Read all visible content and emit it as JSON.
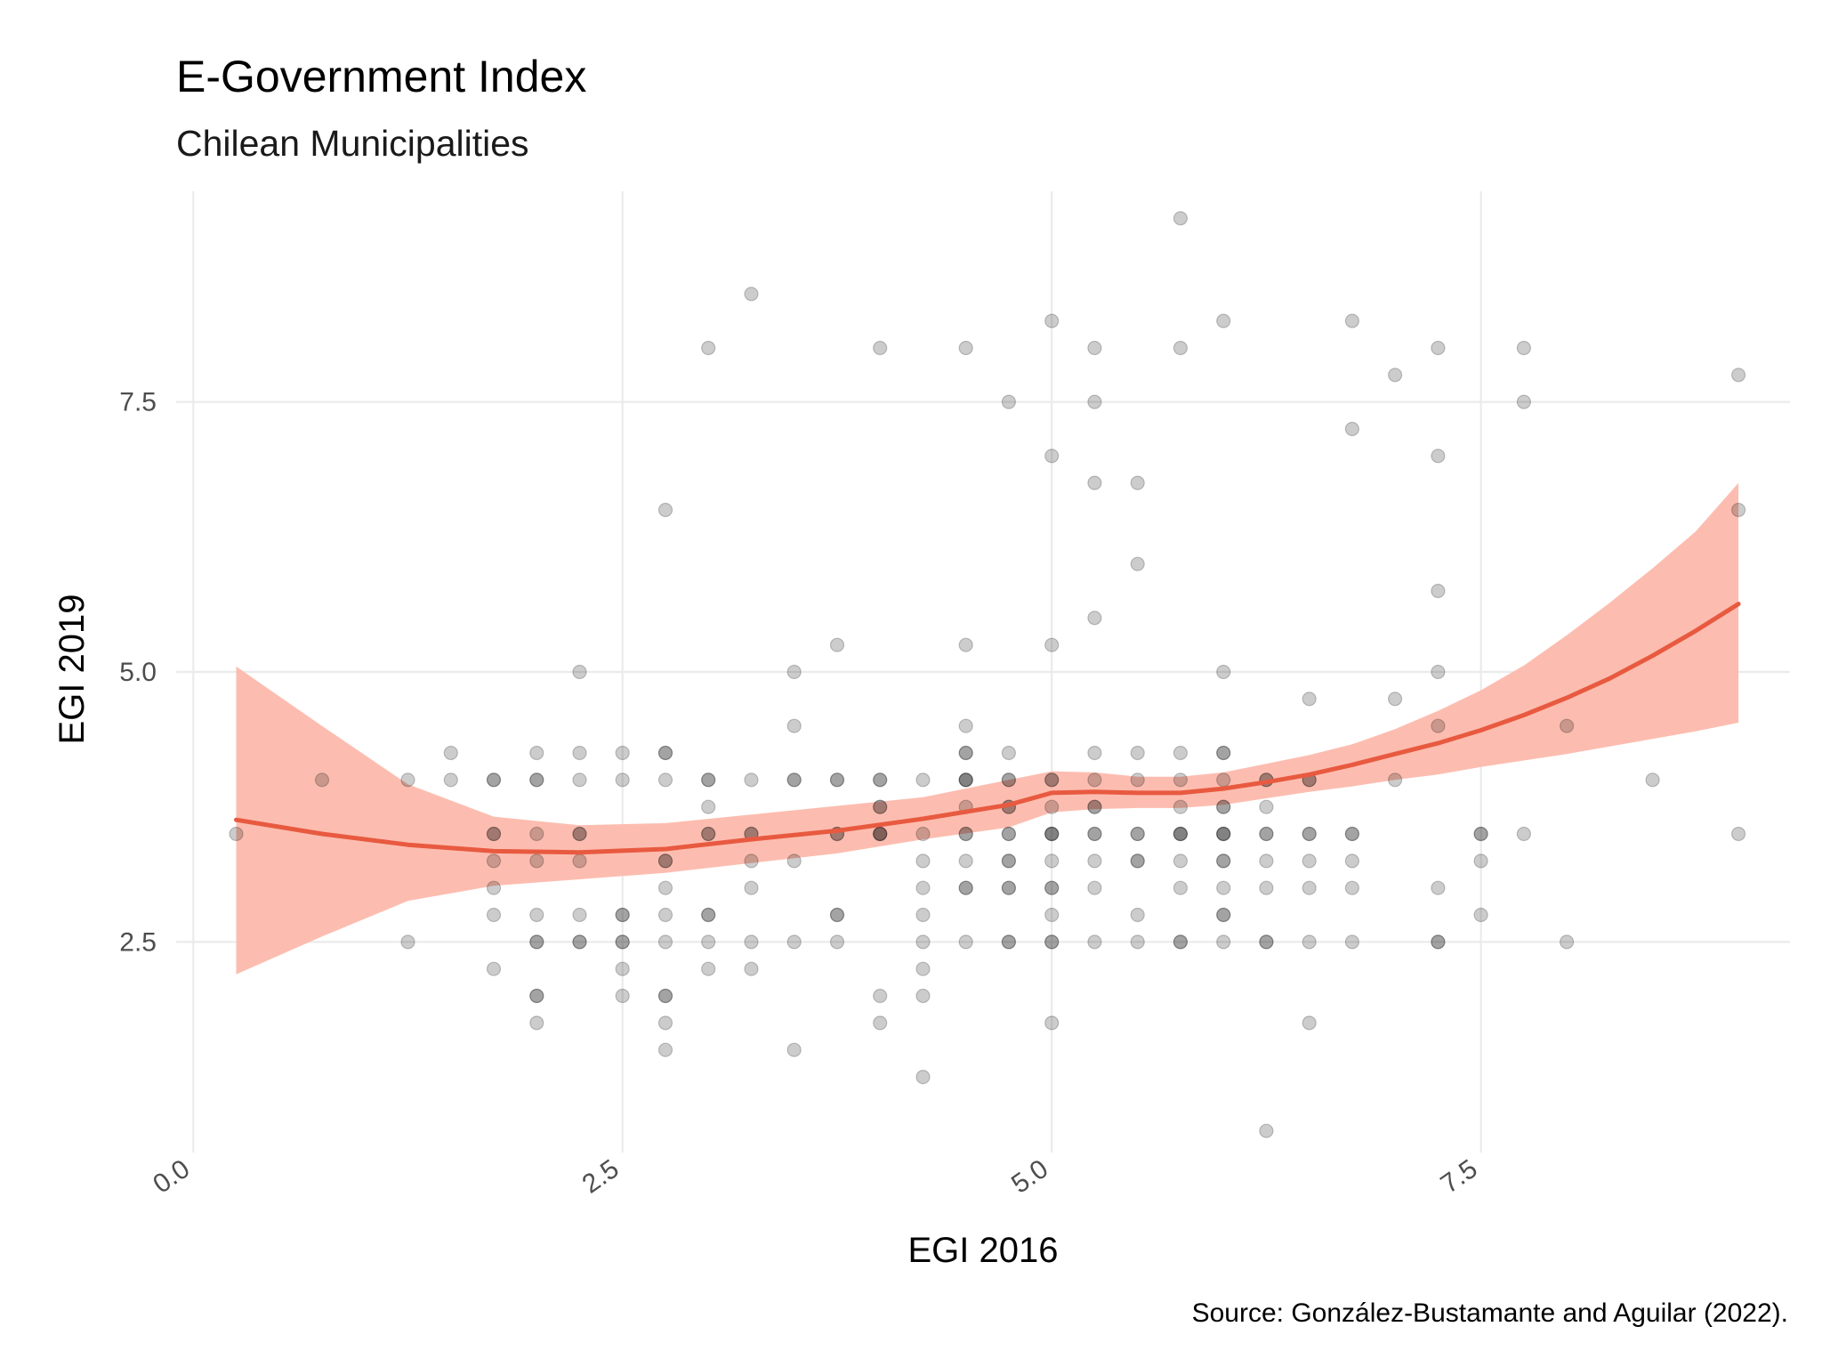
{
  "chart_data": {
    "type": "scatter",
    "title": "E-Government Index",
    "subtitle": "Chilean Municipalities",
    "xlabel": "EGI 2016",
    "ylabel": "EGI 2019",
    "caption": "Source: González-Bustamante and Aguilar (2022).",
    "xlim": [
      -0.1,
      9.3
    ],
    "ylim": [
      0.55,
      9.45
    ],
    "x_ticks": [
      0.0,
      2.5,
      5.0,
      7.5
    ],
    "x_tick_labels": [
      "0.0",
      "2.5",
      "5.0",
      "7.5"
    ],
    "y_ticks": [
      2.5,
      5.0,
      7.5
    ],
    "y_tick_labels": [
      "2.5",
      "5.0",
      "7.5"
    ],
    "grid": true,
    "legend": "none",
    "colors": {
      "points": "#000000",
      "smooth_line": "#e85a40",
      "confidence_band": "#fcb9ac"
    },
    "points": [
      {
        "x": 0.25,
        "y": 3.5
      },
      {
        "x": 0.75,
        "y": 4.0
      },
      {
        "x": 1.25,
        "y": 4.0
      },
      {
        "x": 1.25,
        "y": 2.5
      },
      {
        "x": 1.5,
        "y": 4.25
      },
      {
        "x": 1.5,
        "y": 4.0
      },
      {
        "x": 1.75,
        "y": 4.0
      },
      {
        "x": 1.75,
        "y": 4.0
      },
      {
        "x": 1.75,
        "y": 3.5
      },
      {
        "x": 1.75,
        "y": 3.5
      },
      {
        "x": 1.75,
        "y": 3.25
      },
      {
        "x": 1.75,
        "y": 3.0
      },
      {
        "x": 1.75,
        "y": 2.75
      },
      {
        "x": 1.75,
        "y": 2.25
      },
      {
        "x": 2.0,
        "y": 4.25
      },
      {
        "x": 2.0,
        "y": 4.0
      },
      {
        "x": 2.0,
        "y": 4.0
      },
      {
        "x": 2.0,
        "y": 3.5
      },
      {
        "x": 2.0,
        "y": 3.25
      },
      {
        "x": 2.0,
        "y": 2.75
      },
      {
        "x": 2.0,
        "y": 2.5
      },
      {
        "x": 2.0,
        "y": 2.5
      },
      {
        "x": 2.0,
        "y": 2.0
      },
      {
        "x": 2.0,
        "y": 2.0
      },
      {
        "x": 2.0,
        "y": 1.75
      },
      {
        "x": 2.25,
        "y": 5.0
      },
      {
        "x": 2.25,
        "y": 4.25
      },
      {
        "x": 2.25,
        "y": 4.0
      },
      {
        "x": 2.25,
        "y": 3.5
      },
      {
        "x": 2.25,
        "y": 3.5
      },
      {
        "x": 2.25,
        "y": 3.25
      },
      {
        "x": 2.25,
        "y": 2.75
      },
      {
        "x": 2.25,
        "y": 2.5
      },
      {
        "x": 2.25,
        "y": 2.5
      },
      {
        "x": 2.5,
        "y": 4.25
      },
      {
        "x": 2.5,
        "y": 4.0
      },
      {
        "x": 2.5,
        "y": 2.75
      },
      {
        "x": 2.5,
        "y": 2.75
      },
      {
        "x": 2.5,
        "y": 2.5
      },
      {
        "x": 2.5,
        "y": 2.5
      },
      {
        "x": 2.5,
        "y": 2.25
      },
      {
        "x": 2.5,
        "y": 2.0
      },
      {
        "x": 2.75,
        "y": 6.5
      },
      {
        "x": 2.75,
        "y": 4.25
      },
      {
        "x": 2.75,
        "y": 4.25
      },
      {
        "x": 2.75,
        "y": 4.0
      },
      {
        "x": 2.75,
        "y": 3.25
      },
      {
        "x": 2.75,
        "y": 3.25
      },
      {
        "x": 2.75,
        "y": 3.0
      },
      {
        "x": 2.75,
        "y": 2.75
      },
      {
        "x": 2.75,
        "y": 2.5
      },
      {
        "x": 2.75,
        "y": 2.0
      },
      {
        "x": 2.75,
        "y": 2.0
      },
      {
        "x": 2.75,
        "y": 1.75
      },
      {
        "x": 2.75,
        "y": 1.5
      },
      {
        "x": 3.0,
        "y": 8.0
      },
      {
        "x": 3.0,
        "y": 4.0
      },
      {
        "x": 3.0,
        "y": 4.0
      },
      {
        "x": 3.0,
        "y": 3.75
      },
      {
        "x": 3.0,
        "y": 3.5
      },
      {
        "x": 3.0,
        "y": 3.5
      },
      {
        "x": 3.0,
        "y": 2.75
      },
      {
        "x": 3.0,
        "y": 2.75
      },
      {
        "x": 3.0,
        "y": 2.5
      },
      {
        "x": 3.0,
        "y": 2.25
      },
      {
        "x": 3.25,
        "y": 8.5
      },
      {
        "x": 3.25,
        "y": 4.0
      },
      {
        "x": 3.25,
        "y": 3.5
      },
      {
        "x": 3.25,
        "y": 3.5
      },
      {
        "x": 3.25,
        "y": 3.25
      },
      {
        "x": 3.25,
        "y": 3.0
      },
      {
        "x": 3.25,
        "y": 2.5
      },
      {
        "x": 3.25,
        "y": 2.25
      },
      {
        "x": 3.5,
        "y": 5.0
      },
      {
        "x": 3.5,
        "y": 4.5
      },
      {
        "x": 3.5,
        "y": 4.0
      },
      {
        "x": 3.5,
        "y": 4.0
      },
      {
        "x": 3.5,
        "y": 3.25
      },
      {
        "x": 3.5,
        "y": 2.5
      },
      {
        "x": 3.5,
        "y": 1.5
      },
      {
        "x": 3.75,
        "y": 5.25
      },
      {
        "x": 3.75,
        "y": 4.0
      },
      {
        "x": 3.75,
        "y": 4.0
      },
      {
        "x": 3.75,
        "y": 3.5
      },
      {
        "x": 3.75,
        "y": 3.5
      },
      {
        "x": 3.75,
        "y": 2.75
      },
      {
        "x": 3.75,
        "y": 2.75
      },
      {
        "x": 3.75,
        "y": 2.5
      },
      {
        "x": 4.0,
        "y": 8.0
      },
      {
        "x": 4.0,
        "y": 4.0
      },
      {
        "x": 4.0,
        "y": 4.0
      },
      {
        "x": 4.0,
        "y": 3.75
      },
      {
        "x": 4.0,
        "y": 3.75
      },
      {
        "x": 4.0,
        "y": 3.5
      },
      {
        "x": 4.0,
        "y": 3.5
      },
      {
        "x": 4.0,
        "y": 3.5
      },
      {
        "x": 4.0,
        "y": 2.0
      },
      {
        "x": 4.0,
        "y": 1.75
      },
      {
        "x": 4.25,
        "y": 4.0
      },
      {
        "x": 4.25,
        "y": 3.5
      },
      {
        "x": 4.25,
        "y": 3.25
      },
      {
        "x": 4.25,
        "y": 3.0
      },
      {
        "x": 4.25,
        "y": 2.75
      },
      {
        "x": 4.25,
        "y": 2.5
      },
      {
        "x": 4.25,
        "y": 2.25
      },
      {
        "x": 4.25,
        "y": 2.0
      },
      {
        "x": 4.25,
        "y": 1.25
      },
      {
        "x": 4.5,
        "y": 8.0
      },
      {
        "x": 4.5,
        "y": 5.25
      },
      {
        "x": 4.5,
        "y": 4.5
      },
      {
        "x": 4.5,
        "y": 4.25
      },
      {
        "x": 4.5,
        "y": 4.25
      },
      {
        "x": 4.5,
        "y": 4.0
      },
      {
        "x": 4.5,
        "y": 4.0
      },
      {
        "x": 4.5,
        "y": 4.0
      },
      {
        "x": 4.5,
        "y": 3.75
      },
      {
        "x": 4.5,
        "y": 3.5
      },
      {
        "x": 4.5,
        "y": 3.5
      },
      {
        "x": 4.5,
        "y": 3.25
      },
      {
        "x": 4.5,
        "y": 3.0
      },
      {
        "x": 4.5,
        "y": 3.0
      },
      {
        "x": 4.5,
        "y": 2.5
      },
      {
        "x": 4.75,
        "y": 7.5
      },
      {
        "x": 4.75,
        "y": 4.25
      },
      {
        "x": 4.75,
        "y": 4.0
      },
      {
        "x": 4.75,
        "y": 4.0
      },
      {
        "x": 4.75,
        "y": 3.75
      },
      {
        "x": 4.75,
        "y": 3.75
      },
      {
        "x": 4.75,
        "y": 3.5
      },
      {
        "x": 4.75,
        "y": 3.5
      },
      {
        "x": 4.75,
        "y": 3.25
      },
      {
        "x": 4.75,
        "y": 3.25
      },
      {
        "x": 4.75,
        "y": 3.0
      },
      {
        "x": 4.75,
        "y": 3.0
      },
      {
        "x": 4.75,
        "y": 2.5
      },
      {
        "x": 4.75,
        "y": 2.5
      },
      {
        "x": 5.0,
        "y": 8.25
      },
      {
        "x": 5.0,
        "y": 7.0
      },
      {
        "x": 5.0,
        "y": 5.25
      },
      {
        "x": 5.0,
        "y": 4.0
      },
      {
        "x": 5.0,
        "y": 4.0
      },
      {
        "x": 5.0,
        "y": 3.75
      },
      {
        "x": 5.0,
        "y": 3.5
      },
      {
        "x": 5.0,
        "y": 3.5
      },
      {
        "x": 5.0,
        "y": 3.5
      },
      {
        "x": 5.0,
        "y": 3.25
      },
      {
        "x": 5.0,
        "y": 3.0
      },
      {
        "x": 5.0,
        "y": 3.0
      },
      {
        "x": 5.0,
        "y": 2.75
      },
      {
        "x": 5.0,
        "y": 2.5
      },
      {
        "x": 5.0,
        "y": 2.5
      },
      {
        "x": 5.0,
        "y": 1.75
      },
      {
        "x": 5.25,
        "y": 8.0
      },
      {
        "x": 5.25,
        "y": 7.5
      },
      {
        "x": 5.25,
        "y": 6.75
      },
      {
        "x": 5.25,
        "y": 5.5
      },
      {
        "x": 5.25,
        "y": 4.25
      },
      {
        "x": 5.25,
        "y": 4.0
      },
      {
        "x": 5.25,
        "y": 3.75
      },
      {
        "x": 5.25,
        "y": 3.75
      },
      {
        "x": 5.25,
        "y": 3.5
      },
      {
        "x": 5.25,
        "y": 3.5
      },
      {
        "x": 5.25,
        "y": 3.25
      },
      {
        "x": 5.25,
        "y": 3.0
      },
      {
        "x": 5.25,
        "y": 2.5
      },
      {
        "x": 5.5,
        "y": 6.75
      },
      {
        "x": 5.5,
        "y": 6.0
      },
      {
        "x": 5.5,
        "y": 4.25
      },
      {
        "x": 5.5,
        "y": 4.0
      },
      {
        "x": 5.5,
        "y": 3.5
      },
      {
        "x": 5.5,
        "y": 3.5
      },
      {
        "x": 5.5,
        "y": 3.25
      },
      {
        "x": 5.5,
        "y": 3.25
      },
      {
        "x": 5.5,
        "y": 2.75
      },
      {
        "x": 5.5,
        "y": 2.5
      },
      {
        "x": 5.75,
        "y": 9.2
      },
      {
        "x": 5.75,
        "y": 8.0
      },
      {
        "x": 5.75,
        "y": 4.25
      },
      {
        "x": 5.75,
        "y": 4.0
      },
      {
        "x": 5.75,
        "y": 3.75
      },
      {
        "x": 5.75,
        "y": 3.5
      },
      {
        "x": 5.75,
        "y": 3.5
      },
      {
        "x": 5.75,
        "y": 3.5
      },
      {
        "x": 5.75,
        "y": 3.25
      },
      {
        "x": 5.75,
        "y": 3.0
      },
      {
        "x": 5.75,
        "y": 2.5
      },
      {
        "x": 5.75,
        "y": 2.5
      },
      {
        "x": 6.0,
        "y": 8.25
      },
      {
        "x": 6.0,
        "y": 5.0
      },
      {
        "x": 6.0,
        "y": 4.25
      },
      {
        "x": 6.0,
        "y": 4.25
      },
      {
        "x": 6.0,
        "y": 4.0
      },
      {
        "x": 6.0,
        "y": 3.75
      },
      {
        "x": 6.0,
        "y": 3.75
      },
      {
        "x": 6.0,
        "y": 3.5
      },
      {
        "x": 6.0,
        "y": 3.5
      },
      {
        "x": 6.0,
        "y": 3.5
      },
      {
        "x": 6.0,
        "y": 3.25
      },
      {
        "x": 6.0,
        "y": 3.25
      },
      {
        "x": 6.0,
        "y": 3.0
      },
      {
        "x": 6.0,
        "y": 2.75
      },
      {
        "x": 6.0,
        "y": 2.75
      },
      {
        "x": 6.0,
        "y": 2.5
      },
      {
        "x": 6.25,
        "y": 4.0
      },
      {
        "x": 6.25,
        "y": 4.0
      },
      {
        "x": 6.25,
        "y": 3.75
      },
      {
        "x": 6.25,
        "y": 3.5
      },
      {
        "x": 6.25,
        "y": 3.5
      },
      {
        "x": 6.25,
        "y": 3.25
      },
      {
        "x": 6.25,
        "y": 3.0
      },
      {
        "x": 6.25,
        "y": 2.5
      },
      {
        "x": 6.25,
        "y": 2.5
      },
      {
        "x": 6.25,
        "y": 0.75
      },
      {
        "x": 6.5,
        "y": 4.75
      },
      {
        "x": 6.5,
        "y": 4.0
      },
      {
        "x": 6.5,
        "y": 4.0
      },
      {
        "x": 6.5,
        "y": 3.5
      },
      {
        "x": 6.5,
        "y": 3.5
      },
      {
        "x": 6.5,
        "y": 3.25
      },
      {
        "x": 6.5,
        "y": 3.0
      },
      {
        "x": 6.5,
        "y": 2.5
      },
      {
        "x": 6.5,
        "y": 1.75
      },
      {
        "x": 6.75,
        "y": 8.25
      },
      {
        "x": 6.75,
        "y": 7.25
      },
      {
        "x": 6.75,
        "y": 3.5
      },
      {
        "x": 6.75,
        "y": 3.5
      },
      {
        "x": 6.75,
        "y": 3.25
      },
      {
        "x": 6.75,
        "y": 3.0
      },
      {
        "x": 6.75,
        "y": 2.5
      },
      {
        "x": 7.0,
        "y": 7.75
      },
      {
        "x": 7.0,
        "y": 4.75
      },
      {
        "x": 7.0,
        "y": 4.0
      },
      {
        "x": 7.25,
        "y": 8.0
      },
      {
        "x": 7.25,
        "y": 7.0
      },
      {
        "x": 7.25,
        "y": 5.75
      },
      {
        "x": 7.25,
        "y": 5.0
      },
      {
        "x": 7.25,
        "y": 4.5
      },
      {
        "x": 7.25,
        "y": 3.0
      },
      {
        "x": 7.25,
        "y": 2.5
      },
      {
        "x": 7.25,
        "y": 2.5
      },
      {
        "x": 7.5,
        "y": 3.5
      },
      {
        "x": 7.5,
        "y": 3.5
      },
      {
        "x": 7.5,
        "y": 3.25
      },
      {
        "x": 7.5,
        "y": 2.75
      },
      {
        "x": 7.75,
        "y": 8.0
      },
      {
        "x": 7.75,
        "y": 7.5
      },
      {
        "x": 7.75,
        "y": 3.5
      },
      {
        "x": 8.0,
        "y": 4.5
      },
      {
        "x": 8.0,
        "y": 2.5
      },
      {
        "x": 8.5,
        "y": 4.0
      },
      {
        "x": 9.0,
        "y": 7.75
      },
      {
        "x": 9.0,
        "y": 6.5
      },
      {
        "x": 9.0,
        "y": 3.5
      }
    ],
    "smooth": {
      "x": [
        0.25,
        0.75,
        1.25,
        1.75,
        2.25,
        2.75,
        3.25,
        3.75,
        4.25,
        4.75,
        5.0,
        5.25,
        5.5,
        5.75,
        6.0,
        6.25,
        6.5,
        6.75,
        7.0,
        7.25,
        7.5,
        7.75,
        8.0,
        8.25,
        8.5,
        8.75,
        9.0
      ],
      "y": [
        3.63,
        3.5,
        3.4,
        3.34,
        3.33,
        3.36,
        3.45,
        3.53,
        3.64,
        3.77,
        3.88,
        3.89,
        3.88,
        3.88,
        3.92,
        3.98,
        4.05,
        4.14,
        4.24,
        4.34,
        4.46,
        4.6,
        4.76,
        4.94,
        5.15,
        5.38,
        5.63
      ],
      "lo": [
        2.2,
        2.55,
        2.88,
        3.02,
        3.08,
        3.14,
        3.23,
        3.32,
        3.45,
        3.56,
        3.7,
        3.73,
        3.74,
        3.74,
        3.77,
        3.83,
        3.89,
        3.94,
        4.0,
        4.05,
        4.12,
        4.18,
        4.24,
        4.31,
        4.38,
        4.45,
        4.53
      ],
      "hi": [
        5.05,
        4.5,
        3.96,
        3.66,
        3.58,
        3.6,
        3.68,
        3.76,
        3.84,
        4.0,
        4.08,
        4.07,
        4.03,
        4.03,
        4.07,
        4.15,
        4.23,
        4.33,
        4.47,
        4.64,
        4.83,
        5.06,
        5.34,
        5.64,
        5.96,
        6.3,
        6.75
      ]
    }
  }
}
